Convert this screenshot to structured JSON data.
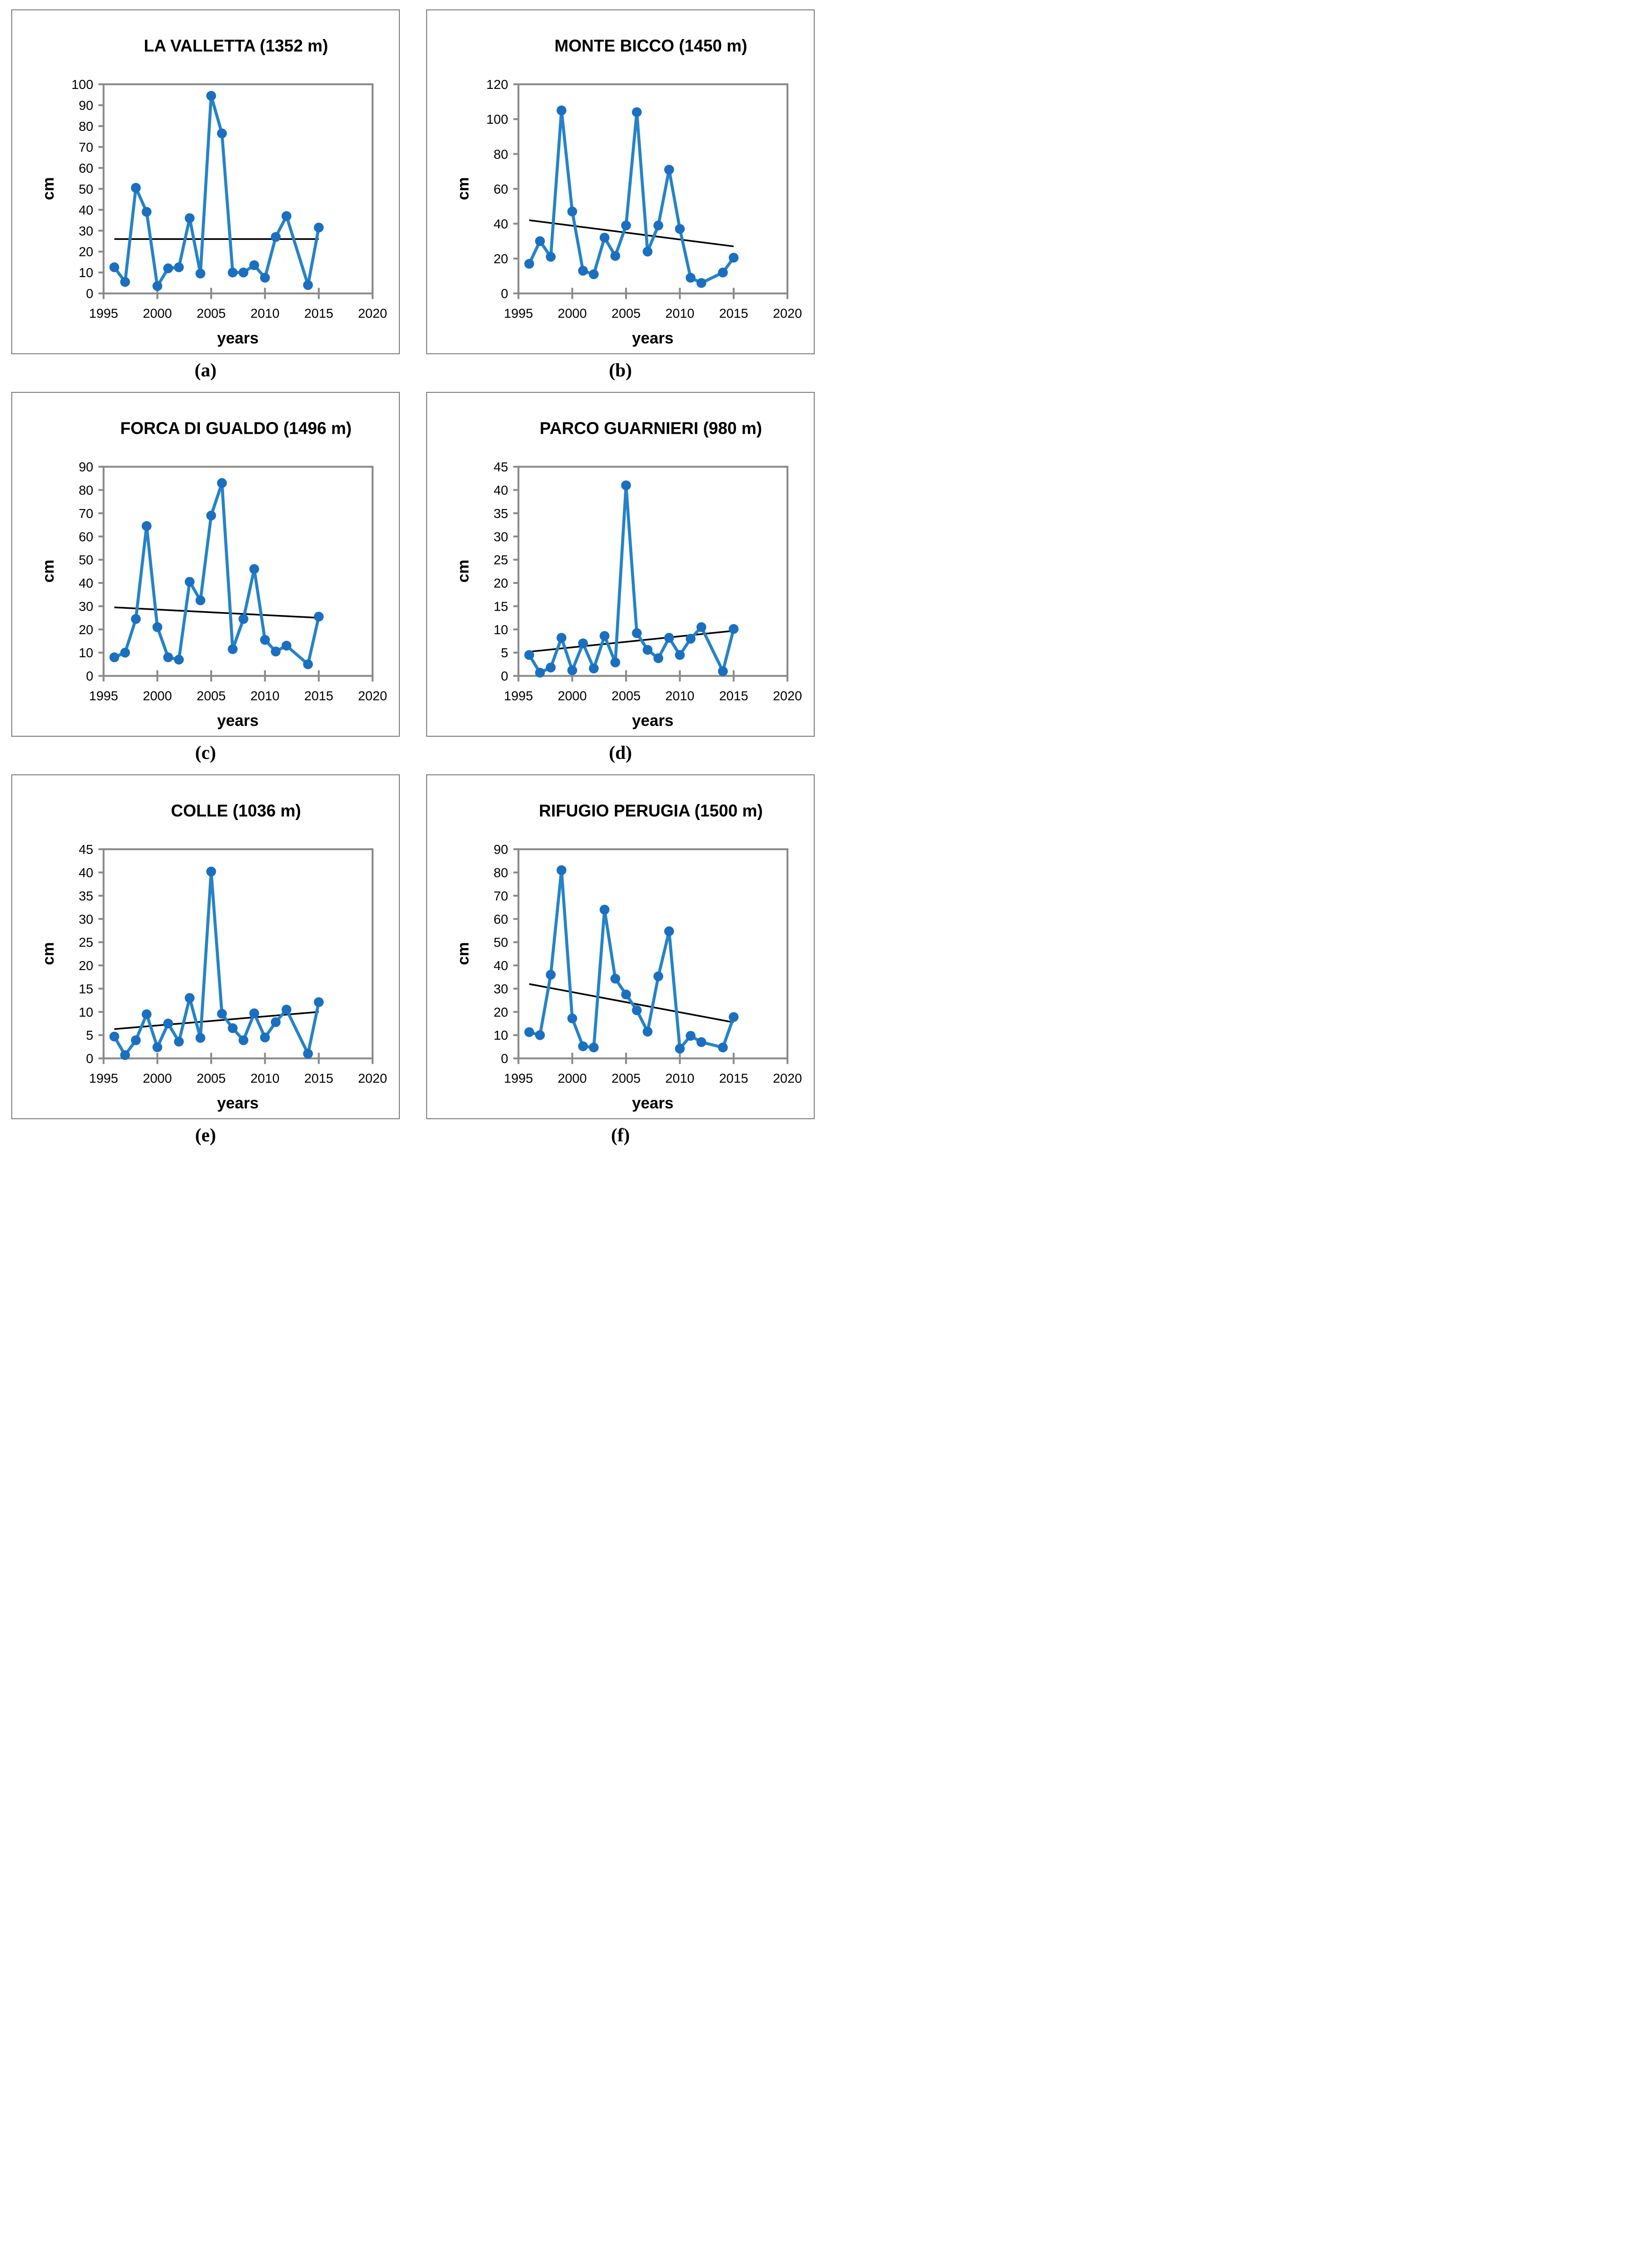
{
  "figure": {
    "xlabel": "years",
    "ylabel": "cm",
    "xticks": [
      1995,
      2000,
      2005,
      2010,
      2015,
      2020
    ],
    "colors": {
      "line": "#2583C6",
      "marker": "#1B6FC0",
      "trend": "#000000",
      "axis": "#8A8A8A",
      "panel_border": "#7F7F7F",
      "text": "#000000",
      "background": "#FFFFFF"
    }
  },
  "chart_data": [
    {
      "type": "line",
      "panel": "a",
      "caption": "(a)",
      "title": "LA VALLETTA (1352 m)",
      "xlabel": "years",
      "ylabel": "cm",
      "xlim": [
        1995,
        2020
      ],
      "ylim": [
        0,
        100
      ],
      "ytick_step": 10,
      "grid": false,
      "legend": "none",
      "x": [
        1996,
        1997,
        1998,
        1999,
        2000,
        2001,
        2002,
        2003,
        2004,
        2005,
        2006,
        2007,
        2008,
        2009,
        2010,
        2011,
        2012,
        2014,
        2015
      ],
      "values": [
        12.5,
        5.5,
        50.5,
        39,
        3.5,
        12,
        12.5,
        36,
        9.5,
        94.5,
        76.5,
        10,
        10,
        13.5,
        7.5,
        27,
        37,
        4,
        31.5
      ],
      "trend": {
        "x": [
          1996,
          2015
        ],
        "y": [
          26,
          26
        ]
      }
    },
    {
      "type": "line",
      "panel": "b",
      "caption": "(b)",
      "title": "MONTE BICCO (1450 m)",
      "xlabel": "years",
      "ylabel": "cm",
      "xlim": [
        1995,
        2020
      ],
      "ylim": [
        0,
        120
      ],
      "ytick_step": 20,
      "grid": false,
      "legend": "none",
      "x": [
        1996,
        1997,
        1998,
        1999,
        2000,
        2001,
        2002,
        2003,
        2004,
        2005,
        2006,
        2007,
        2008,
        2009,
        2010,
        2011,
        2012,
        2014,
        2015
      ],
      "values": [
        17,
        30,
        21,
        105,
        47,
        13,
        11,
        32,
        21.5,
        39,
        104,
        24,
        39,
        71,
        37,
        9,
        6,
        12,
        20.5
      ],
      "trend": {
        "x": [
          1996,
          2015
        ],
        "y": [
          42,
          27
        ]
      }
    },
    {
      "type": "line",
      "panel": "c",
      "caption": "(c)",
      "title": "FORCA DI GUALDO (1496 m)",
      "xlabel": "years",
      "ylabel": "cm",
      "xlim": [
        1995,
        2020
      ],
      "ylim": [
        0,
        90
      ],
      "ytick_step": 10,
      "grid": false,
      "legend": "none",
      "x": [
        1996,
        1997,
        1998,
        1999,
        2000,
        2001,
        2002,
        2003,
        2004,
        2005,
        2006,
        2007,
        2008,
        2009,
        2010,
        2011,
        2012,
        2014,
        2015
      ],
      "values": [
        8,
        10,
        24.5,
        64.5,
        21,
        8,
        7,
        40.5,
        32.5,
        69,
        83,
        11.5,
        24.5,
        46,
        15.5,
        10.5,
        13,
        5,
        25.5
      ],
      "trend": {
        "x": [
          1996,
          2015
        ],
        "y": [
          29.5,
          25
        ]
      }
    },
    {
      "type": "line",
      "panel": "d",
      "caption": "(d)",
      "title": "PARCO GUARNIERI (980 m)",
      "xlabel": "years",
      "ylabel": "cm",
      "xlim": [
        1995,
        2020
      ],
      "ylim": [
        0,
        45
      ],
      "ytick_step": 5,
      "grid": false,
      "legend": "none",
      "x": [
        1996,
        1997,
        1998,
        1999,
        2000,
        2001,
        2002,
        2003,
        2004,
        2005,
        2006,
        2007,
        2008,
        2009,
        2010,
        2011,
        2012,
        2014,
        2015
      ],
      "values": [
        4.5,
        0.7,
        1.8,
        8.2,
        1.2,
        7,
        1.6,
        8.6,
        2.9,
        41,
        9.2,
        5.6,
        3.8,
        8.2,
        4.5,
        8,
        10.5,
        1,
        10.1
      ],
      "trend": {
        "x": [
          1996,
          2015
        ],
        "y": [
          5.2,
          9.7
        ]
      }
    },
    {
      "type": "line",
      "panel": "e",
      "caption": "(e)",
      "title": "COLLE (1036 m)",
      "xlabel": "years",
      "ylabel": "cm",
      "xlim": [
        1995,
        2020
      ],
      "ylim": [
        0,
        45
      ],
      "ytick_step": 5,
      "grid": false,
      "legend": "none",
      "x": [
        1996,
        1997,
        1998,
        1999,
        2000,
        2001,
        2002,
        2003,
        2004,
        2005,
        2006,
        2007,
        2008,
        2009,
        2010,
        2011,
        2012,
        2014,
        2015
      ],
      "values": [
        4.7,
        0.7,
        3.9,
        9.5,
        2.4,
        7.5,
        3.6,
        13,
        4.4,
        40.2,
        9.6,
        6.5,
        3.9,
        9.7,
        4.5,
        7.8,
        10.5,
        1,
        12.1
      ],
      "trend": {
        "x": [
          1996,
          2015
        ],
        "y": [
          6.3,
          10
        ]
      }
    },
    {
      "type": "line",
      "panel": "f",
      "caption": "(f)",
      "title": "RIFUGIO PERUGIA (1500 m)",
      "xlabel": "years",
      "ylabel": "cm",
      "xlim": [
        1995,
        2020
      ],
      "ylim": [
        0,
        90
      ],
      "ytick_step": 10,
      "grid": false,
      "legend": "none",
      "x": [
        1996,
        1997,
        1998,
        1999,
        2000,
        2001,
        2002,
        2003,
        2004,
        2005,
        2006,
        2007,
        2008,
        2009,
        2010,
        2011,
        2012,
        2014,
        2015
      ],
      "values": [
        11.3,
        10,
        36,
        81,
        17.2,
        5.2,
        4.7,
        64,
        34.3,
        27.5,
        20.7,
        11.5,
        35.3,
        54.7,
        4.2,
        9.7,
        7,
        4.7,
        17.8
      ],
      "trend": {
        "x": [
          1996,
          2015
        ],
        "y": [
          32,
          15.5
        ]
      }
    }
  ]
}
